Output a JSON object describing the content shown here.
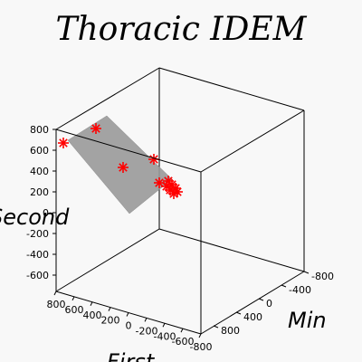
{
  "chart_data": {
    "type": "scatter",
    "title": "Thoracic IDEM",
    "xlabel": "First",
    "ylabel": "Min",
    "zlabel": "Second",
    "x_ticks": [
      "800",
      "600",
      "400",
      "200",
      "0",
      "-200",
      "-400",
      "-600",
      "-800"
    ],
    "y_ticks": [
      "-800",
      "-400",
      "0",
      "400",
      "800"
    ],
    "z_ticks": [
      "800",
      "600",
      "400",
      "200",
      "0",
      "-200",
      "-400",
      "-600"
    ],
    "surface_color": "#9a9a9a",
    "point_color": "#ff0000",
    "points_count": 12
  }
}
